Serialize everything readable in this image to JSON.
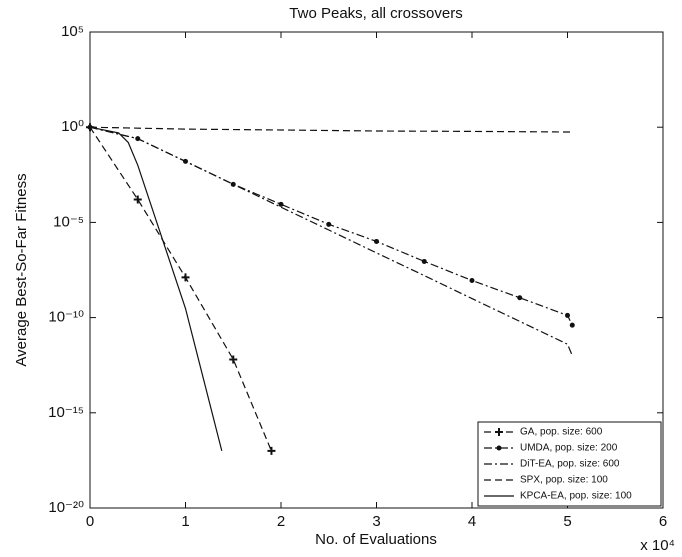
{
  "chart_data": {
    "type": "line",
    "title": "Two Peaks, all crossovers",
    "xlabel": "No. of Evaluations",
    "ylabel": "Average Best-So-Far Fitness",
    "x_multiplier": "x 10⁴",
    "xlim": [
      0,
      6
    ],
    "xticks": [
      0,
      1,
      2,
      3,
      4,
      5,
      6
    ],
    "ylim": [
      1e-20,
      100000
    ],
    "ylog": true,
    "yticks": [
      {
        "value": 1e-20,
        "label": "10⁻²⁰"
      },
      {
        "value": 1e-15,
        "label": "10⁻¹⁵"
      },
      {
        "value": 1e-10,
        "label": "10⁻¹⁰"
      },
      {
        "value": 1e-05,
        "label": "10⁻⁵"
      },
      {
        "value": 1,
        "label": "10⁰"
      },
      {
        "value": 100000,
        "label": "10⁵"
      }
    ],
    "legend": "lower right",
    "series": [
      {
        "name": "GA, pop. size: 600",
        "color": "#111",
        "style": "dashed",
        "marker": "+",
        "x": [
          0,
          0.5,
          1,
          1.5,
          1.9
        ],
        "values": [
          1,
          0.00016,
          1.3e-08,
          6.3e-13,
          1e-17
        ]
      },
      {
        "name": "UMDA, pop. size: 200",
        "color": "#111",
        "style": "dashdot",
        "marker": "o",
        "x": [
          0,
          0.5,
          1,
          1.5,
          2,
          2.5,
          3,
          3.5,
          4,
          4.5,
          5,
          5.05
        ],
        "values": [
          1,
          0.25,
          0.016,
          0.001,
          8.9e-05,
          7.9e-06,
          1e-06,
          8.9e-08,
          8.9e-09,
          1.1e-09,
          1.3e-10,
          4e-11
        ]
      },
      {
        "name": "DiT-EA, pop. size: 600",
        "color": "#111",
        "style": "dashdot",
        "marker": null,
        "x": [
          0,
          0.5,
          1,
          1.5,
          2,
          2.5,
          3,
          3.5,
          4,
          4.5,
          5,
          5.05
        ],
        "values": [
          1,
          0.25,
          0.016,
          0.001,
          6.3e-05,
          4e-06,
          2.5e-07,
          1.6e-08,
          1e-09,
          6.3e-11,
          4e-12,
          1e-12
        ]
      },
      {
        "name": "SPX, pop. size: 100",
        "color": "#111",
        "style": "dashed",
        "marker": null,
        "x": [
          0,
          1,
          2,
          3,
          4,
          5,
          5.05
        ],
        "values": [
          1,
          0.79,
          0.71,
          0.63,
          0.6,
          0.56,
          0.56
        ]
      },
      {
        "name": "KPCA-EA, pop. size: 100",
        "color": "#111",
        "style": "solid",
        "marker": null,
        "x": [
          0,
          0.3,
          0.4,
          0.5,
          0.7,
          1,
          1.38
        ],
        "values": [
          1,
          0.5,
          0.16,
          0.01,
          1e-05,
          3e-10,
          1e-17
        ]
      }
    ]
  }
}
